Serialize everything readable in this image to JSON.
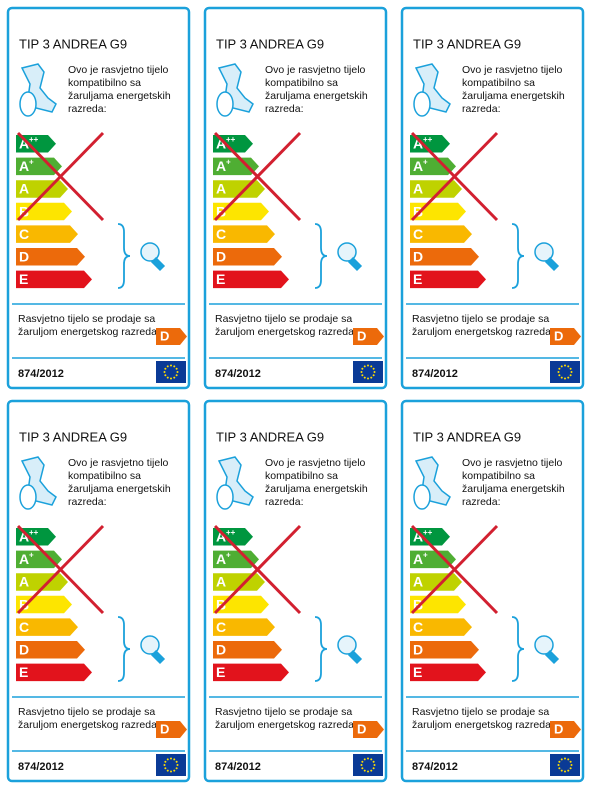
{
  "labels": [
    {
      "title": "TIP 3 ANDREA G9",
      "compat_lines": [
        "Ovo je rasvjetno tijelo",
        "kompatibilno sa",
        "žaruljama energetskih",
        "razreda:"
      ],
      "classes": [
        {
          "letter": "A",
          "sup": "++"
        },
        {
          "letter": "A",
          "sup": "+"
        },
        {
          "letter": "A"
        },
        {
          "letter": "B"
        },
        {
          "letter": "C"
        },
        {
          "letter": "D"
        },
        {
          "letter": "E"
        }
      ],
      "sold_lines": [
        "Rasvjetno tijelo se prodaje sa",
        "žaruljom energetskog razreda:"
      ],
      "sold_class": "D",
      "regulation": "874/2012"
    },
    {
      "title": "TIP 3 ANDREA G9",
      "compat_lines": [
        "Ovo je rasvjetno tijelo",
        "kompatibilno sa",
        "žaruljama energetskih",
        "razreda:"
      ],
      "classes": [
        {
          "letter": "A",
          "sup": "++"
        },
        {
          "letter": "A",
          "sup": "+"
        },
        {
          "letter": "A"
        },
        {
          "letter": "B"
        },
        {
          "letter": "C"
        },
        {
          "letter": "D"
        },
        {
          "letter": "E"
        }
      ],
      "sold_lines": [
        "Rasvjetno tijelo se prodaje sa",
        "žaruljom energetskog razreda:"
      ],
      "sold_class": "D",
      "regulation": "874/2012"
    },
    {
      "title": "TIP 3 ANDREA G9",
      "compat_lines": [
        "Ovo je rasvjetno tijelo",
        "kompatibilno sa",
        "žaruljama energetskih",
        "razreda:"
      ],
      "classes": [
        {
          "letter": "A",
          "sup": "++"
        },
        {
          "letter": "A",
          "sup": "+"
        },
        {
          "letter": "A"
        },
        {
          "letter": "B"
        },
        {
          "letter": "C"
        },
        {
          "letter": "D"
        },
        {
          "letter": "E"
        }
      ],
      "sold_lines": [
        "Rasvjetno tijelo se prodaje sa",
        "žaruljom energetskog razreda:"
      ],
      "sold_class": "D",
      "regulation": "874/2012"
    },
    {
      "title": "TIP 3 ANDREA G9",
      "compat_lines": [
        "Ovo je rasvjetno tijelo",
        "kompatibilno sa",
        "žaruljama energetskih",
        "razreda:"
      ],
      "classes": [
        {
          "letter": "A",
          "sup": "++"
        },
        {
          "letter": "A",
          "sup": "+"
        },
        {
          "letter": "A"
        },
        {
          "letter": "B"
        },
        {
          "letter": "C"
        },
        {
          "letter": "D"
        },
        {
          "letter": "E"
        }
      ],
      "sold_lines": [
        "Rasvjetno tijelo se prodaje sa",
        "žaruljom energetskog razreda:"
      ],
      "sold_class": "D",
      "regulation": "874/2012"
    },
    {
      "title": "TIP 3 ANDREA G9",
      "compat_lines": [
        "Ovo je rasvjetno tijelo",
        "kompatibilno sa",
        "žaruljama energetskih",
        "razreda:"
      ],
      "classes": [
        {
          "letter": "A",
          "sup": "++"
        },
        {
          "letter": "A",
          "sup": "+"
        },
        {
          "letter": "A"
        },
        {
          "letter": "B"
        },
        {
          "letter": "C"
        },
        {
          "letter": "D"
        },
        {
          "letter": "E"
        }
      ],
      "sold_lines": [
        "Rasvjetno tijelo se prodaje sa",
        "žaruljom energetskog razreda:"
      ],
      "sold_class": "D",
      "regulation": "874/2012"
    },
    {
      "title": "TIP 3 ANDREA G9",
      "compat_lines": [
        "Ovo je rasvjetno tijelo",
        "kompatibilno sa",
        "žaruljama energetskih",
        "razreda:"
      ],
      "classes": [
        {
          "letter": "A",
          "sup": "++"
        },
        {
          "letter": "A",
          "sup": "+"
        },
        {
          "letter": "A"
        },
        {
          "letter": "B"
        },
        {
          "letter": "C"
        },
        {
          "letter": "D"
        },
        {
          "letter": "E"
        }
      ],
      "sold_lines": [
        "Rasvjetno tijelo se prodaje sa",
        "žaruljom energetskog razreda:"
      ],
      "sold_class": "D",
      "regulation": "874/2012"
    }
  ]
}
